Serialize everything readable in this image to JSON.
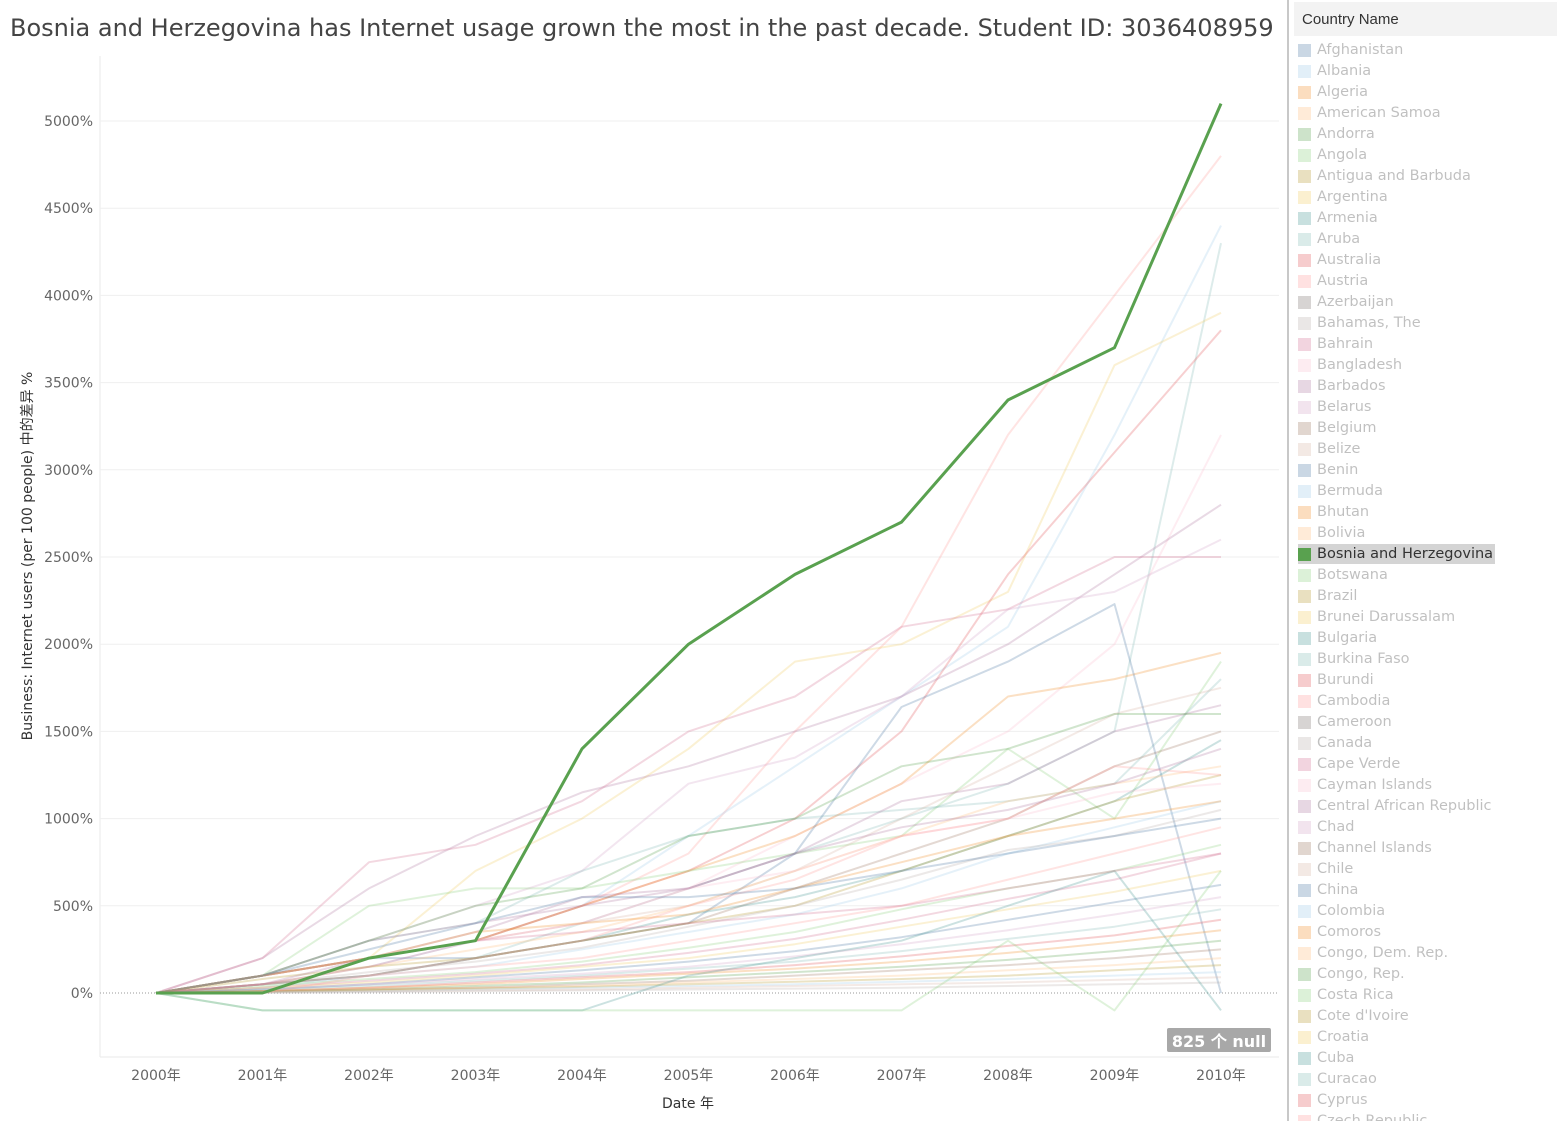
{
  "title": "Bosnia and Herzegovina has Internet usage grown the most in the past decade. Student ID: 3036408959",
  "null_badge": "825 个 null",
  "legend": {
    "header": "Country Name",
    "items": [
      {
        "label": "Afghanistan",
        "color": "#4e79a7",
        "active": false
      },
      {
        "label": "Albania",
        "color": "#a0cbe8",
        "active": false
      },
      {
        "label": "Algeria",
        "color": "#f28e2b",
        "active": false
      },
      {
        "label": "American Samoa",
        "color": "#ffbe7d",
        "active": false
      },
      {
        "label": "Andorra",
        "color": "#59a14f",
        "active": false
      },
      {
        "label": "Angola",
        "color": "#8cd17d",
        "active": false
      },
      {
        "label": "Antigua and Barbuda",
        "color": "#b6992d",
        "active": false
      },
      {
        "label": "Argentina",
        "color": "#f1ce63",
        "active": false
      },
      {
        "label": "Armenia",
        "color": "#499894",
        "active": false
      },
      {
        "label": "Aruba",
        "color": "#86bcb6",
        "active": false
      },
      {
        "label": "Australia",
        "color": "#e15759",
        "active": false
      },
      {
        "label": "Austria",
        "color": "#ff9d9a",
        "active": false
      },
      {
        "label": "Azerbaijan",
        "color": "#79706e",
        "active": false
      },
      {
        "label": "Bahamas, The",
        "color": "#bab0ac",
        "active": false
      },
      {
        "label": "Bahrain",
        "color": "#d37295",
        "active": false
      },
      {
        "label": "Bangladesh",
        "color": "#fabfd2",
        "active": false
      },
      {
        "label": "Barbados",
        "color": "#b07aa1",
        "active": false
      },
      {
        "label": "Belarus",
        "color": "#d4a6c8",
        "active": false
      },
      {
        "label": "Belgium",
        "color": "#9d7660",
        "active": false
      },
      {
        "label": "Belize",
        "color": "#d7b5a6",
        "active": false
      },
      {
        "label": "Benin",
        "color": "#4e79a7",
        "active": false
      },
      {
        "label": "Bermuda",
        "color": "#a0cbe8",
        "active": false
      },
      {
        "label": "Bhutan",
        "color": "#f28e2b",
        "active": false
      },
      {
        "label": "Bolivia",
        "color": "#ffbe7d",
        "active": false
      },
      {
        "label": "Bosnia and Herzegovina",
        "color": "#59a14f",
        "active": true
      },
      {
        "label": "Botswana",
        "color": "#8cd17d",
        "active": false
      },
      {
        "label": "Brazil",
        "color": "#b6992d",
        "active": false
      },
      {
        "label": "Brunei Darussalam",
        "color": "#f1ce63",
        "active": false
      },
      {
        "label": "Bulgaria",
        "color": "#499894",
        "active": false
      },
      {
        "label": "Burkina Faso",
        "color": "#86bcb6",
        "active": false
      },
      {
        "label": "Burundi",
        "color": "#e15759",
        "active": false
      },
      {
        "label": "Cambodia",
        "color": "#ff9d9a",
        "active": false
      },
      {
        "label": "Cameroon",
        "color": "#79706e",
        "active": false
      },
      {
        "label": "Canada",
        "color": "#bab0ac",
        "active": false
      },
      {
        "label": "Cape Verde",
        "color": "#d37295",
        "active": false
      },
      {
        "label": "Cayman Islands",
        "color": "#fabfd2",
        "active": false
      },
      {
        "label": "Central African Republic",
        "color": "#b07aa1",
        "active": false
      },
      {
        "label": "Chad",
        "color": "#d4a6c8",
        "active": false
      },
      {
        "label": "Channel Islands",
        "color": "#9d7660",
        "active": false
      },
      {
        "label": "Chile",
        "color": "#d7b5a6",
        "active": false
      },
      {
        "label": "China",
        "color": "#4e79a7",
        "active": false
      },
      {
        "label": "Colombia",
        "color": "#a0cbe8",
        "active": false
      },
      {
        "label": "Comoros",
        "color": "#f28e2b",
        "active": false
      },
      {
        "label": "Congo, Dem. Rep.",
        "color": "#ffbe7d",
        "active": false
      },
      {
        "label": "Congo, Rep.",
        "color": "#59a14f",
        "active": false
      },
      {
        "label": "Costa Rica",
        "color": "#8cd17d",
        "active": false
      },
      {
        "label": "Cote d'Ivoire",
        "color": "#b6992d",
        "active": false
      },
      {
        "label": "Croatia",
        "color": "#f1ce63",
        "active": false
      },
      {
        "label": "Cuba",
        "color": "#499894",
        "active": false
      },
      {
        "label": "Curacao",
        "color": "#86bcb6",
        "active": false
      },
      {
        "label": "Cyprus",
        "color": "#e15759",
        "active": false
      },
      {
        "label": "Czech Republic",
        "color": "#ff9d9a",
        "active": false
      }
    ]
  },
  "chart_data": {
    "type": "line",
    "xlabel": "Date 年",
    "ylabel": "Business: Internet users (per 100 people) 中的差异 %",
    "x": [
      "2000年",
      "2001年",
      "2002年",
      "2003年",
      "2004年",
      "2005年",
      "2006年",
      "2007年",
      "2008年",
      "2009年",
      "2010年"
    ],
    "yticks": [
      "0%",
      "500%",
      "1000%",
      "1500%",
      "2000%",
      "2500%",
      "3000%",
      "3500%",
      "4000%",
      "4500%",
      "5000%"
    ],
    "ylim": [
      -100,
      5200
    ],
    "grid": true,
    "highlight_color": "#59a14f",
    "series": [
      {
        "name": "Bosnia and Herzegovina",
        "highlight": true,
        "values": [
          0,
          0,
          200,
          300,
          1400,
          2000,
          2400,
          2700,
          3400,
          3700,
          5100
        ]
      },
      {
        "values": [
          0,
          100,
          200,
          300,
          500,
          800,
          1500,
          2100,
          3200,
          4000,
          4800
        ],
        "color": "#ff9d9a"
      },
      {
        "values": [
          0,
          50,
          150,
          300,
          500,
          900,
          1300,
          1700,
          2100,
          3200,
          4400
        ],
        "color": "#a0cbe8"
      },
      {
        "values": [
          0,
          50,
          100,
          200,
          400,
          600,
          800,
          1000,
          1200,
          1500,
          4300
        ],
        "color": "#86bcb6"
      },
      {
        "values": [
          0,
          100,
          200,
          700,
          1000,
          1400,
          1900,
          2000,
          2300,
          3600,
          3900
        ],
        "color": "#f1ce63"
      },
      {
        "values": [
          0,
          100,
          200,
          300,
          500,
          700,
          1000,
          1500,
          2400,
          3100,
          3800
        ],
        "color": "#e15759"
      },
      {
        "values": [
          0,
          100,
          200,
          300,
          400,
          600,
          900,
          1200,
          1500,
          2000,
          3200
        ],
        "color": "#fabfd2"
      },
      {
        "values": [
          0,
          200,
          600,
          900,
          1150,
          1300,
          1500,
          1700,
          2000,
          2400,
          2800
        ],
        "color": "#b07aa1"
      },
      {
        "values": [
          0,
          200,
          750,
          850,
          1100,
          1500,
          1700,
          2100,
          2200,
          2500,
          2500
        ],
        "color": "#d37295"
      },
      {
        "values": [
          0,
          100,
          300,
          500,
          700,
          1200,
          1350,
          1700,
          2200,
          2300,
          2600
        ],
        "color": "#d4a6c8"
      },
      {
        "values": [
          0,
          100,
          200,
          300,
          500,
          700,
          900,
          1200,
          1700,
          1800,
          1950
        ],
        "color": "#f28e2b"
      },
      {
        "values": [
          0,
          100,
          500,
          600,
          600,
          700,
          800,
          900,
          1400,
          1000,
          1900
        ],
        "color": "#8cd17d"
      },
      {
        "values": [
          0,
          100,
          300,
          400,
          700,
          900,
          1000,
          1050,
          1100,
          1200,
          1800
        ],
        "color": "#86bcb6"
      },
      {
        "values": [
          0,
          100,
          200,
          300,
          400,
          500,
          700,
          1000,
          1300,
          1600,
          1750
        ],
        "color": "#d7b5a6"
      },
      {
        "values": [
          0,
          100,
          300,
          400,
          500,
          600,
          800,
          1100,
          1200,
          1500,
          1650
        ],
        "color": "#b07aa1"
      },
      {
        "values": [
          0,
          100,
          200,
          200,
          300,
          400,
          800,
          1640,
          1900,
          2230,
          0
        ],
        "color": "#4e79a7"
      },
      {
        "values": [
          0,
          100,
          300,
          500,
          600,
          900,
          1000,
          1300,
          1400,
          1600,
          1600
        ],
        "color": "#59a14f"
      },
      {
        "values": [
          0,
          50,
          100,
          200,
          300,
          400,
          600,
          800,
          1000,
          1300,
          1500
        ],
        "color": "#9d7660"
      },
      {
        "values": [
          0,
          50,
          100,
          200,
          300,
          450,
          550,
          700,
          900,
          1100,
          1450
        ],
        "color": "#499894"
      },
      {
        "values": [
          0,
          50,
          150,
          250,
          350,
          500,
          700,
          900,
          1100,
          1200,
          1300
        ],
        "color": "#ffbe7d"
      },
      {
        "values": [
          0,
          80,
          150,
          200,
          300,
          400,
          500,
          700,
          900,
          1100,
          1250
        ],
        "color": "#b6992d"
      },
      {
        "values": [
          0,
          100,
          200,
          300,
          400,
          600,
          700,
          900,
          1000,
          1150,
          1200
        ],
        "color": "#fabfd2"
      },
      {
        "values": [
          0,
          30,
          100,
          150,
          250,
          350,
          450,
          600,
          800,
          950,
          1100
        ],
        "color": "#a0cbe8"
      },
      {
        "values": [
          0,
          50,
          120,
          180,
          260,
          380,
          500,
          650,
          820,
          900,
          1050
        ],
        "color": "#bab0ac"
      },
      {
        "values": [
          0,
          50,
          100,
          150,
          200,
          300,
          400,
          500,
          650,
          800,
          950
        ],
        "color": "#ff9d9a"
      },
      {
        "values": [
          0,
          40,
          80,
          120,
          180,
          260,
          350,
          480,
          600,
          700,
          850
        ],
        "color": "#8cd17d"
      },
      {
        "values": [
          0,
          30,
          70,
          110,
          160,
          230,
          310,
          420,
          540,
          650,
          800
        ],
        "color": "#d37295"
      },
      {
        "values": [
          0,
          30,
          60,
          100,
          150,
          200,
          280,
          380,
          480,
          580,
          700
        ],
        "color": "#f1ce63"
      },
      {
        "values": [
          0,
          20,
          50,
          90,
          130,
          180,
          240,
          320,
          420,
          520,
          620
        ],
        "color": "#4e79a7"
      },
      {
        "values": [
          0,
          20,
          50,
          80,
          110,
          150,
          210,
          280,
          360,
          450,
          550
        ],
        "color": "#d4a6c8"
      },
      {
        "values": [
          0,
          20,
          40,
          70,
          100,
          140,
          180,
          240,
          310,
          380,
          480
        ],
        "color": "#86bcb6"
      },
      {
        "values": [
          0,
          10,
          30,
          60,
          90,
          120,
          160,
          210,
          270,
          330,
          420
        ],
        "color": "#e15759"
      },
      {
        "values": [
          0,
          10,
          30,
          50,
          80,
          110,
          140,
          180,
          230,
          290,
          360
        ],
        "color": "#f28e2b"
      },
      {
        "values": [
          0,
          10,
          20,
          40,
          60,
          90,
          120,
          150,
          190,
          240,
          300
        ],
        "color": "#59a14f"
      },
      {
        "values": [
          0,
          10,
          20,
          30,
          50,
          70,
          100,
          130,
          160,
          200,
          250
        ],
        "color": "#9d7660"
      },
      {
        "values": [
          0,
          10,
          20,
          30,
          40,
          60,
          80,
          100,
          130,
          160,
          200
        ],
        "color": "#ffbe7d"
      },
      {
        "values": [
          0,
          5,
          15,
          25,
          35,
          50,
          65,
          80,
          100,
          130,
          160
        ],
        "color": "#b6992d"
      },
      {
        "values": [
          0,
          5,
          10,
          20,
          30,
          40,
          50,
          65,
          80,
          100,
          120
        ],
        "color": "#a0cbe8"
      },
      {
        "values": [
          0,
          5,
          10,
          15,
          20,
          30,
          40,
          50,
          60,
          75,
          90
        ],
        "color": "#d7b5a6"
      },
      {
        "values": [
          0,
          0,
          5,
          10,
          15,
          20,
          25,
          30,
          40,
          50,
          60
        ],
        "color": "#bab0ac"
      },
      {
        "values": [
          0,
          -100,
          -100,
          -100,
          -100,
          100,
          200,
          300,
          500,
          700,
          -100
        ],
        "color": "#499894"
      },
      {
        "values": [
          0,
          -100,
          -100,
          -100,
          -100,
          -100,
          -100,
          -100,
          300,
          -100,
          700
        ],
        "color": "#8cd17d"
      },
      {
        "values": [
          0,
          0,
          100,
          200,
          300,
          500,
          650,
          900,
          1000,
          1300,
          1250
        ],
        "color": "#ff9d9a"
      },
      {
        "values": [
          0,
          50,
          200,
          350,
          550,
          600,
          800,
          950,
          1050,
          1200,
          1400
        ],
        "color": "#b07aa1"
      },
      {
        "values": [
          0,
          100,
          200,
          350,
          400,
          450,
          600,
          750,
          900,
          1000,
          1100
        ],
        "color": "#f28e2b"
      },
      {
        "values": [
          0,
          100,
          250,
          400,
          550,
          550,
          600,
          700,
          800,
          900,
          1000
        ],
        "color": "#4e79a7"
      },
      {
        "values": [
          0,
          50,
          150,
          300,
          350,
          400,
          450,
          500,
          600,
          700,
          800
        ],
        "color": "#d37295"
      }
    ]
  }
}
